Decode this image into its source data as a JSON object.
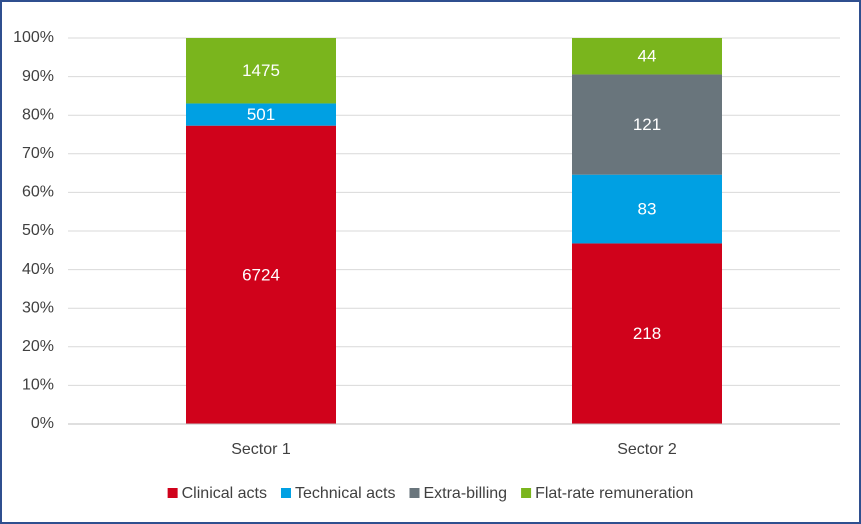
{
  "chart_data": {
    "type": "bar",
    "stacking": "percent",
    "categories": [
      "Sector 1",
      "Sector 2"
    ],
    "series": [
      {
        "name": "Clinical acts",
        "color": "#d0021b",
        "values": [
          6724,
          218
        ]
      },
      {
        "name": "Technical acts",
        "color": "#00a0e3",
        "values": [
          501,
          83
        ]
      },
      {
        "name": "Extra-billing",
        "color": "#69757c",
        "values": [
          0,
          121
        ]
      },
      {
        "name": "Flat-rate remuneration",
        "color": "#7ab51d",
        "values": [
          1475,
          44
        ]
      }
    ],
    "ylim": [
      0,
      100
    ],
    "yticks": [
      {
        "value": 0,
        "label": "0%"
      },
      {
        "value": 10,
        "label": "10%"
      },
      {
        "value": 20,
        "label": "20%"
      },
      {
        "value": 30,
        "label": "30%"
      },
      {
        "value": 40,
        "label": "40%"
      },
      {
        "value": 50,
        "label": "50%"
      },
      {
        "value": 60,
        "label": "60%"
      },
      {
        "value": 70,
        "label": "70%"
      },
      {
        "value": 80,
        "label": "80%"
      },
      {
        "value": 90,
        "label": "90%"
      },
      {
        "value": 100,
        "label": "100%"
      }
    ],
    "grid": true,
    "legend": "bottom"
  }
}
